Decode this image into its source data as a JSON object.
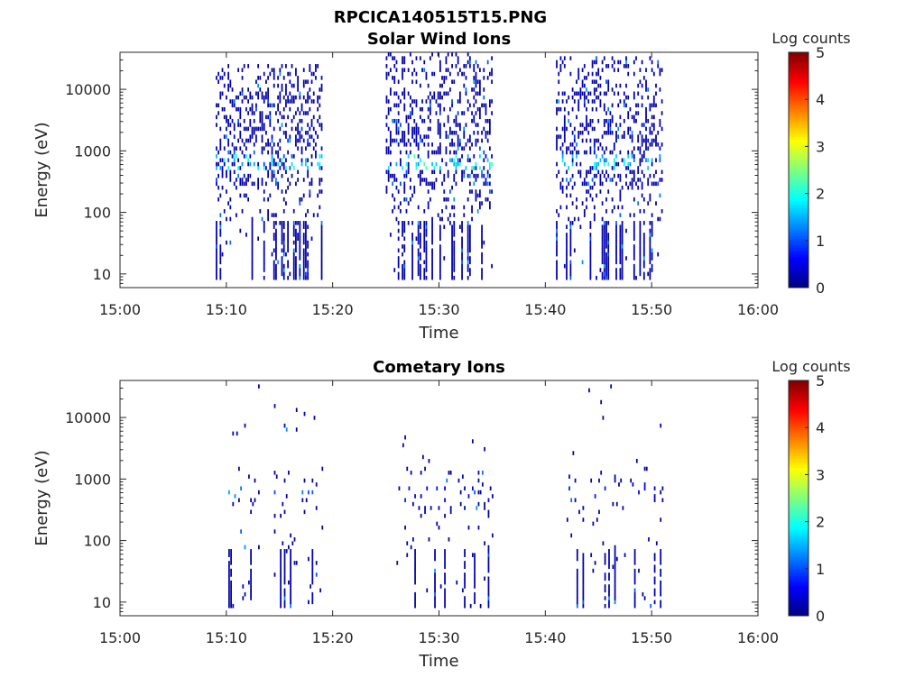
{
  "figure": {
    "title": "RPCICA140515T15.PNG"
  },
  "chart_data": [
    {
      "type": "heatmap",
      "title": "Solar Wind Ions",
      "xlabel": "Time",
      "ylabel": "Energy (eV)",
      "x_ticks": [
        "15:00",
        "15:10",
        "15:20",
        "15:30",
        "15:40",
        "15:50",
        "16:00"
      ],
      "xlim": [
        "15:00",
        "16:00"
      ],
      "y_scale": "log",
      "ylim": [
        6,
        40000
      ],
      "y_ticks": [
        10,
        100,
        1000,
        10000
      ],
      "y_tick_labels": [
        "10",
        "100",
        "1000",
        "10000"
      ],
      "colorbar": {
        "label": "Log counts",
        "range": [
          0,
          5
        ],
        "ticks": [
          "0",
          "1",
          "2",
          "3",
          "4",
          "5"
        ],
        "colormap": "jet"
      },
      "grid": false,
      "activity_intervals": [
        {
          "start": "15:09",
          "end": "15:19",
          "emin": 8,
          "emax": 25000,
          "peak_energy_eV": 600,
          "peak_log_counts": 2.2
        },
        {
          "start": "15:25",
          "end": "15:35",
          "emin": 8,
          "emax": 40000,
          "peak_energy_eV": 600,
          "peak_log_counts": 2.3
        },
        {
          "start": "15:41",
          "end": "15:51",
          "emin": 8,
          "emax": 30000,
          "peak_energy_eV": 600,
          "peak_log_counts": 2.1
        }
      ]
    },
    {
      "type": "heatmap",
      "title": "Cometary Ions",
      "xlabel": "Time",
      "ylabel": "Energy (eV)",
      "x_ticks": [
        "15:00",
        "15:10",
        "15:20",
        "15:30",
        "15:40",
        "15:50",
        "16:00"
      ],
      "xlim": [
        "15:00",
        "16:00"
      ],
      "y_scale": "log",
      "ylim": [
        6,
        40000
      ],
      "y_ticks": [
        10,
        100,
        1000,
        10000
      ],
      "y_tick_labels": [
        "10",
        "100",
        "1000",
        "10000"
      ],
      "colorbar": {
        "label": "Log counts",
        "range": [
          0,
          5
        ],
        "ticks": [
          "0",
          "1",
          "2",
          "3",
          "4",
          "5"
        ],
        "colormap": "jet"
      },
      "grid": false,
      "activity_intervals": [
        {
          "start": "15:10",
          "end": "15:19",
          "emin": 8,
          "emax": 35000,
          "peak_energy_eV": 600,
          "peak_log_counts": 1.5
        },
        {
          "start": "15:26",
          "end": "15:35",
          "emin": 8,
          "emax": 5000,
          "peak_energy_eV": 500,
          "peak_log_counts": 0.8
        },
        {
          "start": "15:42",
          "end": "15:51",
          "emin": 8,
          "emax": 35000,
          "peak_energy_eV": 600,
          "peak_log_counts": 0.8
        }
      ]
    }
  ]
}
